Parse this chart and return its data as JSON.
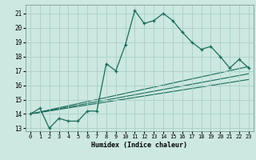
{
  "title": "",
  "xlabel": "Humidex (Indice chaleur)",
  "bg_color": "#cce8e0",
  "grid_color": "#a8d0c8",
  "line_color": "#1a6b5a",
  "xlim": [
    -0.5,
    23.5
  ],
  "ylim": [
    12.8,
    21.6
  ],
  "yticks": [
    13,
    14,
    15,
    16,
    17,
    18,
    19,
    20,
    21
  ],
  "xticks": [
    0,
    1,
    2,
    3,
    4,
    5,
    6,
    7,
    8,
    9,
    10,
    11,
    12,
    13,
    14,
    15,
    16,
    17,
    18,
    19,
    20,
    21,
    22,
    23
  ],
  "line1_x": [
    0,
    1,
    2,
    3,
    4,
    5,
    6,
    7,
    8,
    9,
    10,
    11,
    12,
    13,
    14,
    15,
    16,
    17,
    18,
    19,
    20,
    21,
    22,
    23
  ],
  "line1_y": [
    14.0,
    14.4,
    13.0,
    13.7,
    13.5,
    13.5,
    14.2,
    14.2,
    17.5,
    17.0,
    18.8,
    21.2,
    20.3,
    20.5,
    21.0,
    20.5,
    19.7,
    19.0,
    18.5,
    18.7,
    18.0,
    17.2,
    17.8,
    17.2
  ],
  "line2_x": [
    0,
    23
  ],
  "line2_y": [
    14.0,
    17.3
  ],
  "line3_x": [
    0,
    23
  ],
  "line3_y": [
    14.0,
    16.8
  ],
  "line4_x": [
    0,
    23
  ],
  "line4_y": [
    14.0,
    16.4
  ]
}
